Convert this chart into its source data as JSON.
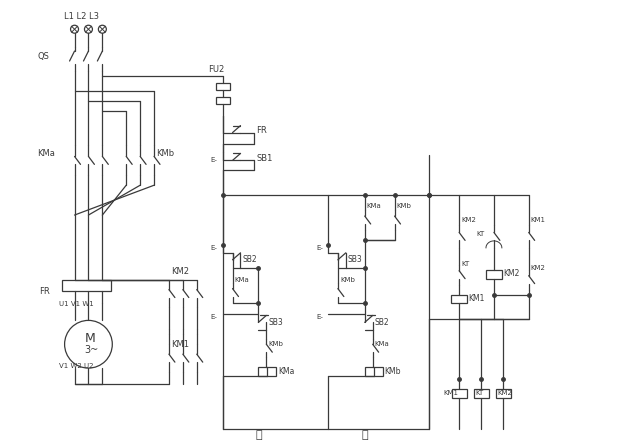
{
  "fig_w": 6.4,
  "fig_h": 4.47,
  "lc": "#3a3a3a",
  "lw": 0.9,
  "fs": 5.8,
  "bg": "#f5f5f0",
  "labels": {
    "L1L2L3": "L1 L2 L3",
    "QS": "QS",
    "FU2": "FU2",
    "FR": "FR",
    "SB1": "SB1",
    "SB2": "SB2",
    "SB3": "SB3",
    "KMa": "KMa",
    "KMb": "KMb",
    "KM1": "KM1",
    "KM2": "KM2",
    "KT": "KT",
    "fwd": "正",
    "rev": "反",
    "M": "M",
    "M3": "3~",
    "U1V1W1": "U1 V1 W1",
    "V1W2U2": "V1 W2 U2",
    "Eminus": "E-"
  }
}
